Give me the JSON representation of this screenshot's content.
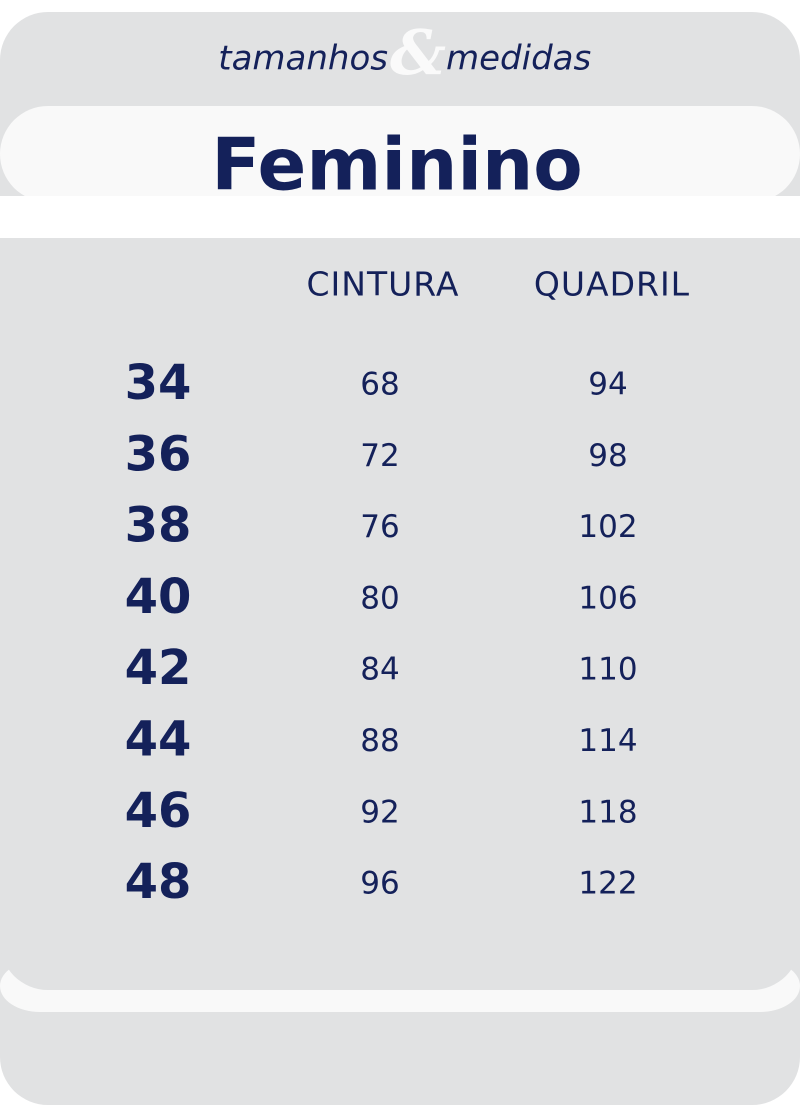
{
  "header": {
    "left": "tamanhos",
    "amp": "&",
    "right": "medidas",
    "title": "Feminino"
  },
  "table": {
    "columns": [
      "CINTURA",
      "QUADRIL"
    ],
    "rows": [
      [
        "34",
        "68",
        "94"
      ],
      [
        "36",
        "72",
        "98"
      ],
      [
        "38",
        "76",
        "102"
      ],
      [
        "40",
        "80",
        "106"
      ],
      [
        "42",
        "84",
        "110"
      ],
      [
        "44",
        "88",
        "114"
      ],
      [
        "46",
        "92",
        "118"
      ],
      [
        "48",
        "96",
        "122"
      ]
    ]
  }
}
